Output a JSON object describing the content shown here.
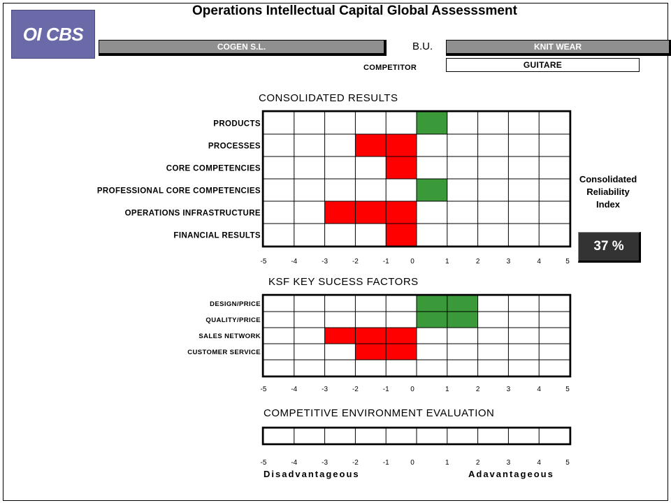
{
  "logo": {
    "text": "OI CBS"
  },
  "header": {
    "title": "Operations Intellectual Capital Global Assesssment",
    "company": "COGEN S.L.",
    "bu_label": "B.U.",
    "bu_value": "KNIT WEAR",
    "competitor_label": "COMPETITOR",
    "competitor_value": "GUITARE"
  },
  "reliability": {
    "label_lines": [
      "Consolidated",
      "Reliability",
      "Index"
    ],
    "value": "37 %"
  },
  "footer": {
    "left_label": "Disadvantageous",
    "right_label": "Adavantageous"
  },
  "colors": {
    "positive": "#3a9a3a",
    "negative": "#ff0000",
    "grid": "#000000",
    "logo": "#6a6aa8"
  },
  "chart_data": [
    {
      "type": "heatmap",
      "title": "CONSOLIDATED RESULTS",
      "x_ticks": [
        "-5",
        "-4",
        "-3",
        "-2",
        "-1",
        "0",
        "1",
        "2",
        "3",
        "4",
        "5"
      ],
      "xlim": [
        -5,
        5
      ],
      "rows": [
        {
          "label": "PRODUCTS",
          "range": [
            0,
            1
          ]
        },
        {
          "label": "PROCESSES",
          "range": [
            -2,
            0
          ]
        },
        {
          "label": "CORE COMPETENCIES",
          "range": [
            -1,
            0
          ]
        },
        {
          "label": "PROFESSIONAL CORE COMPETENCIES",
          "range": [
            0,
            1
          ]
        },
        {
          "label": "OPERATIONS INFRASTRUCTURE",
          "range": [
            -3,
            0
          ]
        },
        {
          "label": "FINANCIAL RESULTS",
          "range": [
            -1,
            0
          ]
        }
      ]
    },
    {
      "type": "heatmap",
      "title": "KSF  KEY SUCESS FACTORS",
      "x_ticks": [
        "-5",
        "-4",
        "-3",
        "-2",
        "-1",
        "0",
        "1",
        "2",
        "3",
        "4",
        "5"
      ],
      "xlim": [
        -5,
        5
      ],
      "rows": [
        {
          "label": "DESIGN/PRICE",
          "range": [
            0,
            2
          ]
        },
        {
          "label": "QUALITY/PRICE",
          "range": [
            0,
            2
          ]
        },
        {
          "label": "SALES NETWORK",
          "range": [
            -3,
            0
          ]
        },
        {
          "label": "CUSTOMER SERVICE",
          "range": [
            -2,
            0
          ]
        },
        {
          "label": "",
          "range": null
        }
      ]
    },
    {
      "type": "heatmap",
      "title": "COMPETITIVE ENVIRONMENT EVALUATION",
      "x_ticks": [
        "-5",
        "-4",
        "-3",
        "-2",
        "-1",
        "0",
        "1",
        "2",
        "3",
        "4",
        "5"
      ],
      "xlim": [
        -5,
        5
      ],
      "rows": [
        {
          "label": "",
          "range": null
        }
      ]
    }
  ]
}
